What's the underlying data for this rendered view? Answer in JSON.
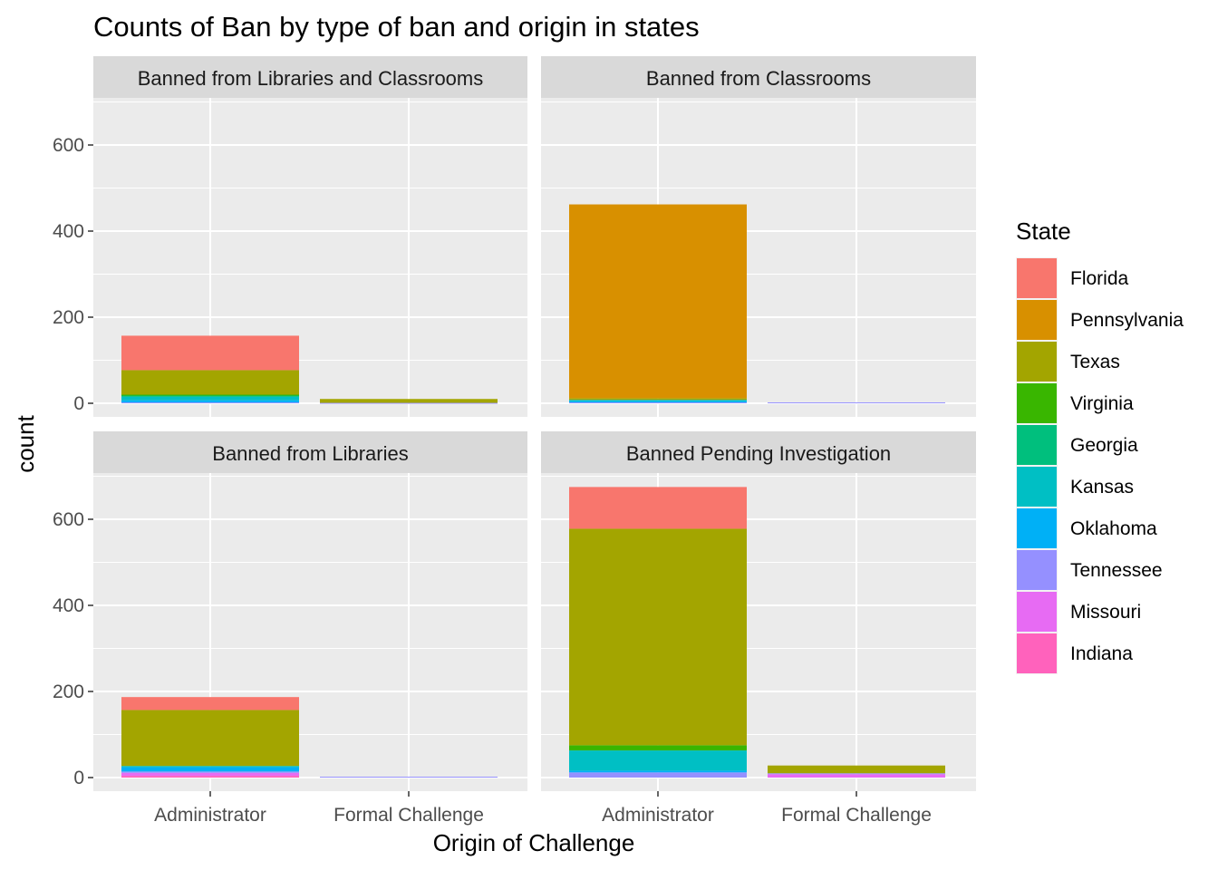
{
  "chart_data": {
    "type": "bar",
    "stacked": true,
    "title": "Counts of Ban by type of ban and origin in states",
    "xlabel": "Origin of Challenge",
    "ylabel": "count",
    "categories": [
      "Administrator",
      "Formal Challenge"
    ],
    "ylim": [
      0,
      700
    ],
    "yticks": [
      0,
      200,
      400,
      600
    ],
    "grid": true,
    "legend": {
      "title": "State",
      "position": "right",
      "entries": [
        {
          "name": "Florida",
          "color": "#F8766D"
        },
        {
          "name": "Pennsylvania",
          "color": "#D89000"
        },
        {
          "name": "Texas",
          "color": "#A3A500"
        },
        {
          "name": "Virginia",
          "color": "#39B600"
        },
        {
          "name": "Georgia",
          "color": "#00BF7D"
        },
        {
          "name": "Kansas",
          "color": "#00BFC4"
        },
        {
          "name": "Oklahoma",
          "color": "#00B0F6"
        },
        {
          "name": "Tennessee",
          "color": "#9590FF"
        },
        {
          "name": "Missouri",
          "color": "#E76BF3"
        },
        {
          "name": "Indiana",
          "color": "#FF62BC"
        }
      ]
    },
    "panels": [
      {
        "title": "Banned from Libraries and Classrooms",
        "bars": [
          {
            "category": "Administrator",
            "segments": [
              {
                "state": "Florida",
                "value": 80
              },
              {
                "state": "Texas",
                "value": 57
              },
              {
                "state": "Virginia",
                "value": 2
              },
              {
                "state": "Georgia",
                "value": 3
              },
              {
                "state": "Kansas",
                "value": 8
              },
              {
                "state": "Oklahoma",
                "value": 5
              },
              {
                "state": "Tennessee",
                "value": 2
              }
            ]
          },
          {
            "category": "Formal Challenge",
            "segments": [
              {
                "state": "Texas",
                "value": 9
              },
              {
                "state": "Tennessee",
                "value": 1
              }
            ]
          }
        ]
      },
      {
        "title": "Banned from Classrooms",
        "bars": [
          {
            "category": "Administrator",
            "segments": [
              {
                "state": "Pennsylvania",
                "value": 450
              },
              {
                "state": "Texas",
                "value": 4
              },
              {
                "state": "Kansas",
                "value": 3
              },
              {
                "state": "Oklahoma",
                "value": 3
              },
              {
                "state": "Tennessee",
                "value": 2
              }
            ]
          },
          {
            "category": "Formal Challenge",
            "segments": [
              {
                "state": "Tennessee",
                "value": 2
              }
            ]
          }
        ]
      },
      {
        "title": "Banned from Libraries",
        "bars": [
          {
            "category": "Administrator",
            "segments": [
              {
                "state": "Florida",
                "value": 30
              },
              {
                "state": "Texas",
                "value": 130
              },
              {
                "state": "Kansas",
                "value": 3
              },
              {
                "state": "Oklahoma",
                "value": 10
              },
              {
                "state": "Tennessee",
                "value": 3
              },
              {
                "state": "Missouri",
                "value": 7
              },
              {
                "state": "Indiana",
                "value": 4
              }
            ]
          },
          {
            "category": "Formal Challenge",
            "segments": [
              {
                "state": "Tennessee",
                "value": 2
              }
            ]
          }
        ]
      },
      {
        "title": "Banned Pending Investigation",
        "bars": [
          {
            "category": "Administrator",
            "segments": [
              {
                "state": "Florida",
                "value": 97
              },
              {
                "state": "Texas",
                "value": 503
              },
              {
                "state": "Virginia",
                "value": 12
              },
              {
                "state": "Kansas",
                "value": 47
              },
              {
                "state": "Oklahoma",
                "value": 4
              },
              {
                "state": "Tennessee",
                "value": 12
              }
            ]
          },
          {
            "category": "Formal Challenge",
            "segments": [
              {
                "state": "Texas",
                "value": 18
              },
              {
                "state": "Tennessee",
                "value": 2
              },
              {
                "state": "Missouri",
                "value": 8
              }
            ]
          }
        ]
      }
    ]
  }
}
